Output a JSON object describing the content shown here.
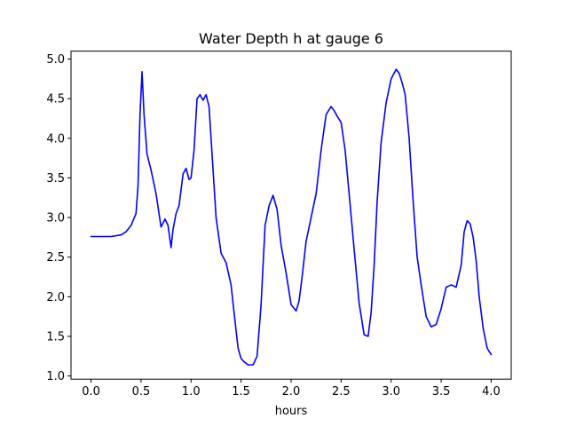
{
  "chart_data": {
    "type": "line",
    "title": "Water Depth h at gauge 6",
    "xlabel": "hours",
    "ylabel": "",
    "xlim": [
      -0.2,
      4.2
    ],
    "ylim": [
      0.96,
      5.1
    ],
    "xticks": [
      0.0,
      0.5,
      1.0,
      1.5,
      2.0,
      2.5,
      3.0,
      3.5,
      4.0
    ],
    "xtick_labels": [
      "0.0",
      "0.5",
      "1.0",
      "1.5",
      "2.0",
      "2.5",
      "3.0",
      "3.5",
      "4.0"
    ],
    "yticks": [
      1.0,
      1.5,
      2.0,
      2.5,
      3.0,
      3.5,
      4.0,
      4.5,
      5.0
    ],
    "ytick_labels": [
      "1.0",
      "1.5",
      "2.0",
      "2.5",
      "3.0",
      "3.5",
      "4.0",
      "4.5",
      "5.0"
    ],
    "grid": false,
    "series": [
      {
        "color": "#0000ff",
        "x": [
          0.0,
          0.1,
          0.2,
          0.3,
          0.35,
          0.4,
          0.45,
          0.47,
          0.49,
          0.51,
          0.53,
          0.56,
          0.6,
          0.65,
          0.7,
          0.74,
          0.77,
          0.8,
          0.82,
          0.85,
          0.88,
          0.92,
          0.95,
          0.98,
          1.0,
          1.03,
          1.06,
          1.09,
          1.12,
          1.15,
          1.18,
          1.21,
          1.25,
          1.3,
          1.35,
          1.4,
          1.43,
          1.47,
          1.5,
          1.53,
          1.57,
          1.62,
          1.66,
          1.7,
          1.74,
          1.78,
          1.82,
          1.86,
          1.9,
          1.95,
          2.0,
          2.05,
          2.08,
          2.11,
          2.15,
          2.2,
          2.25,
          2.3,
          2.35,
          2.4,
          2.43,
          2.46,
          2.5,
          2.54,
          2.58,
          2.63,
          2.68,
          2.73,
          2.77,
          2.8,
          2.83,
          2.86,
          2.9,
          2.95,
          3.0,
          3.05,
          3.08,
          3.11,
          3.14,
          3.18,
          3.22,
          3.26,
          3.3,
          3.35,
          3.4,
          3.45,
          3.5,
          3.55,
          3.6,
          3.65,
          3.7,
          3.73,
          3.76,
          3.79,
          3.82,
          3.85,
          3.88,
          3.92,
          3.96,
          4.0
        ],
        "y": [
          2.76,
          2.76,
          2.76,
          2.78,
          2.82,
          2.9,
          3.05,
          3.4,
          4.3,
          4.84,
          4.3,
          3.8,
          3.6,
          3.3,
          2.88,
          2.98,
          2.9,
          2.62,
          2.85,
          3.05,
          3.15,
          3.55,
          3.62,
          3.48,
          3.5,
          3.85,
          4.5,
          4.55,
          4.48,
          4.55,
          4.4,
          3.8,
          3.0,
          2.55,
          2.43,
          2.15,
          1.8,
          1.35,
          1.22,
          1.18,
          1.14,
          1.14,
          1.25,
          1.9,
          2.9,
          3.15,
          3.28,
          3.1,
          2.65,
          2.3,
          1.9,
          1.82,
          1.95,
          2.25,
          2.7,
          3.0,
          3.3,
          3.85,
          4.3,
          4.4,
          4.35,
          4.28,
          4.2,
          3.85,
          3.3,
          2.6,
          1.92,
          1.52,
          1.5,
          1.8,
          2.4,
          3.2,
          3.95,
          4.45,
          4.75,
          4.87,
          4.82,
          4.7,
          4.55,
          4.0,
          3.2,
          2.5,
          2.15,
          1.75,
          1.62,
          1.65,
          1.85,
          2.12,
          2.15,
          2.12,
          2.4,
          2.82,
          2.96,
          2.92,
          2.75,
          2.45,
          2.0,
          1.6,
          1.35,
          1.27
        ]
      }
    ]
  }
}
